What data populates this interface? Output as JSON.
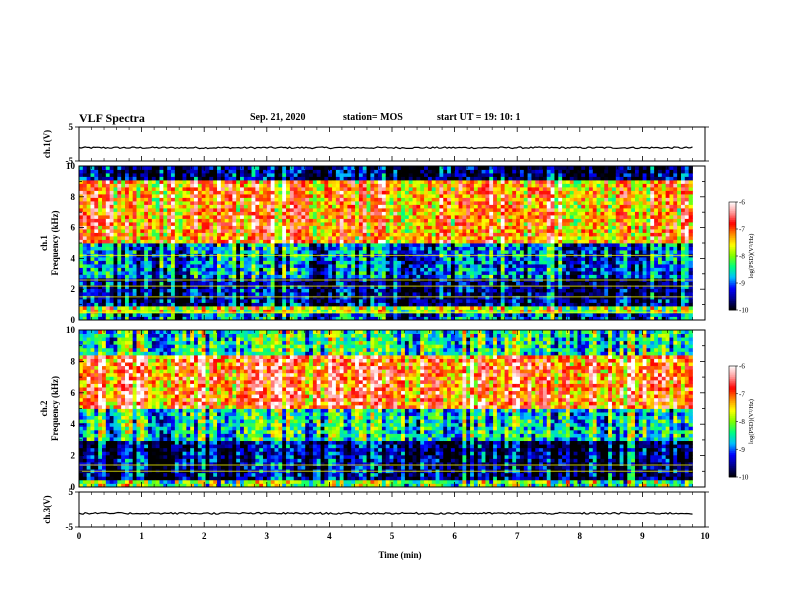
{
  "header": {
    "title": "VLF Spectra",
    "date": "Sep. 21, 2020",
    "station": "station= MOS",
    "start_ut": "start  UT =   19: 10: 1"
  },
  "colors": {
    "waveform": "#000000",
    "colormap": [
      "#000000",
      "#00008b",
      "#0000ff",
      "#00bfff",
      "#00ff7f",
      "#7fff00",
      "#ffff00",
      "#ff8c00",
      "#ff0000",
      "#ff9a9a",
      "#ffffff"
    ]
  },
  "chart_data": [
    {
      "type": "line",
      "panel": "ch.1 waveform",
      "ylabel": "ch.1(V)",
      "ylim": [
        -5,
        5
      ],
      "yticks": [
        "5",
        "-5"
      ],
      "series": [
        {
          "x": [
            0,
            9.8
          ],
          "y": [
            -1.1,
            -1.1
          ]
        }
      ]
    },
    {
      "type": "heatmap",
      "panel": "ch.1 spectrogram",
      "ylabel": "ch.1 Frequency (kHz)",
      "xlim": [
        0,
        9.8
      ],
      "ylim": [
        0,
        10
      ],
      "yticks": [
        "0",
        "2",
        "4",
        "6",
        "8",
        "10"
      ],
      "colorbar": {
        "label": "log(PSD)(V²/Hz)",
        "range": [
          -10,
          -6
        ],
        "ticks": [
          "-6",
          "-7",
          "-8",
          "-9",
          "-10"
        ]
      },
      "bands": [
        {
          "fmin": 0,
          "fmax": 0.4,
          "level": -9.0
        },
        {
          "fmin": 0.4,
          "fmax": 0.8,
          "level": -7.8
        },
        {
          "fmin": 0.8,
          "fmax": 2.8,
          "level": -9.6
        },
        {
          "fmin": 2.8,
          "fmax": 5.0,
          "level": -9.0
        },
        {
          "fmin": 5.0,
          "fmax": 9.0,
          "level": -7.2
        },
        {
          "fmin": 9.0,
          "fmax": 10.0,
          "level": -9.7
        }
      ],
      "tonal_lines_khz": [
        0.5,
        1.5,
        2.2,
        2.6,
        4.2
      ]
    },
    {
      "type": "heatmap",
      "panel": "ch.2 spectrogram",
      "ylabel": "ch.2 Frequency (kHz)",
      "xlim": [
        0,
        9.8
      ],
      "ylim": [
        0,
        10
      ],
      "yticks": [
        "0",
        "2",
        "4",
        "6",
        "8",
        "10"
      ],
      "colorbar": {
        "label": "log(PSD)(V²/Hz)",
        "range": [
          -10,
          -6
        ],
        "ticks": [
          "-6",
          "-7",
          "-8",
          "-9",
          "-10"
        ]
      },
      "bands": [
        {
          "fmin": 0,
          "fmax": 0.5,
          "level": -8.2
        },
        {
          "fmin": 0.5,
          "fmax": 3.0,
          "level": -9.7
        },
        {
          "fmin": 3.0,
          "fmax": 5.0,
          "level": -8.6
        },
        {
          "fmin": 5.0,
          "fmax": 8.5,
          "level": -7.0
        },
        {
          "fmin": 8.5,
          "fmax": 10.0,
          "level": -8.5
        }
      ],
      "tonal_lines_khz": [
        1.0,
        1.4
      ]
    },
    {
      "type": "line",
      "panel": "ch.3 waveform",
      "ylabel": "ch.3(V)",
      "ylim": [
        -5,
        5
      ],
      "yticks": [
        "5",
        "-5"
      ],
      "series": [
        {
          "x": [
            0,
            9.8
          ],
          "y": [
            -1.1,
            -1.1
          ]
        }
      ]
    }
  ],
  "xaxis": {
    "label": "Time  (min)",
    "xlim": [
      0,
      10
    ],
    "ticks": [
      "0",
      "1",
      "2",
      "3",
      "4",
      "5",
      "6",
      "7",
      "8",
      "9",
      "10"
    ]
  }
}
